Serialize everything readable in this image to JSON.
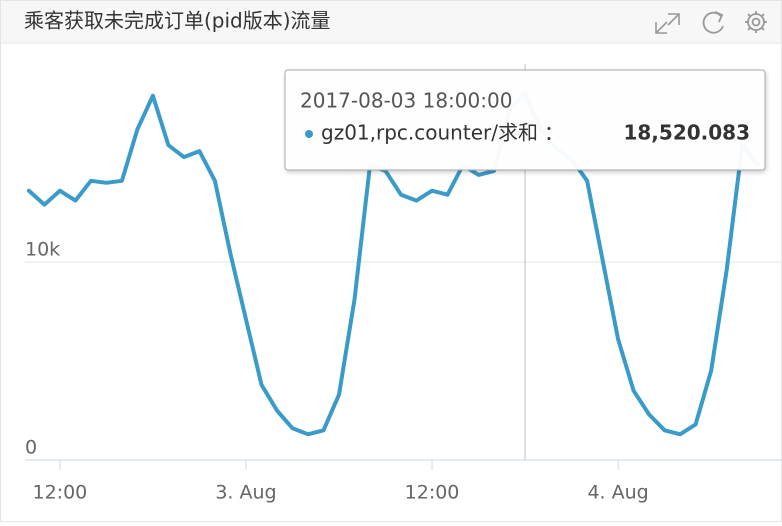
{
  "chart_data": {
    "type": "line",
    "title": "乘客获取未完成订单(pid版本)流量",
    "x": [
      "2017-08-02 10:00",
      "2017-08-02 11:00",
      "2017-08-02 12:00",
      "2017-08-02 13:00",
      "2017-08-02 14:00",
      "2017-08-02 15:00",
      "2017-08-02 16:00",
      "2017-08-02 17:00",
      "2017-08-02 18:00",
      "2017-08-02 19:00",
      "2017-08-02 20:00",
      "2017-08-02 21:00",
      "2017-08-02 22:00",
      "2017-08-02 23:00",
      "2017-08-03 00:00",
      "2017-08-03 01:00",
      "2017-08-03 02:00",
      "2017-08-03 03:00",
      "2017-08-03 04:00",
      "2017-08-03 05:00",
      "2017-08-03 06:00",
      "2017-08-03 07:00",
      "2017-08-03 08:00",
      "2017-08-03 09:00",
      "2017-08-03 10:00",
      "2017-08-03 11:00",
      "2017-08-03 12:00",
      "2017-08-03 13:00",
      "2017-08-03 14:00",
      "2017-08-03 15:00",
      "2017-08-03 16:00",
      "2017-08-03 17:00",
      "2017-08-03 18:00",
      "2017-08-03 19:00",
      "2017-08-03 20:00",
      "2017-08-03 21:00",
      "2017-08-03 22:00",
      "2017-08-03 23:00",
      "2017-08-04 00:00",
      "2017-08-04 01:00",
      "2017-08-04 02:00",
      "2017-08-04 03:00",
      "2017-08-04 04:00",
      "2017-08-04 05:00",
      "2017-08-04 06:00",
      "2017-08-04 07:00",
      "2017-08-04 08:00",
      "2017-08-04 09:00"
    ],
    "series": [
      {
        "name": "gz01,rpc.counter/求和",
        "color": "#3a9bcb",
        "values": [
          13600,
          12900,
          13600,
          13100,
          14100,
          14000,
          14100,
          16700,
          18400,
          15900,
          15300,
          15600,
          14100,
          10400,
          7100,
          3800,
          2500,
          1600,
          1300,
          1500,
          3300,
          8100,
          14900,
          14600,
          13400,
          13100,
          13600,
          13400,
          14900,
          14400,
          14600,
          17700,
          18520.083,
          16700,
          15700,
          15200,
          14100,
          10100,
          6100,
          3500,
          2300,
          1500,
          1300,
          1800,
          4500,
          9600,
          15900,
          14900
        ]
      }
    ],
    "xlim": [
      "2017-08-02 09:45",
      "2017-08-04 09:40"
    ],
    "xticks": [
      {
        "value": "2017-08-02 12:00",
        "label": "12:00"
      },
      {
        "value": "2017-08-03 00:00",
        "label": "3. Aug"
      },
      {
        "value": "2017-08-03 12:00",
        "label": "12:00"
      },
      {
        "value": "2017-08-04 00:00",
        "label": "4. Aug"
      }
    ],
    "ylim": [
      0,
      20000
    ],
    "yticks": [
      0,
      {
        "value": 10000,
        "label": "10k"
      }
    ],
    "grid": true,
    "tooltip": {
      "time": "2017-08-03 18:00:00",
      "index": 32,
      "separator": "：",
      "value_label": "18,520.083"
    }
  }
}
